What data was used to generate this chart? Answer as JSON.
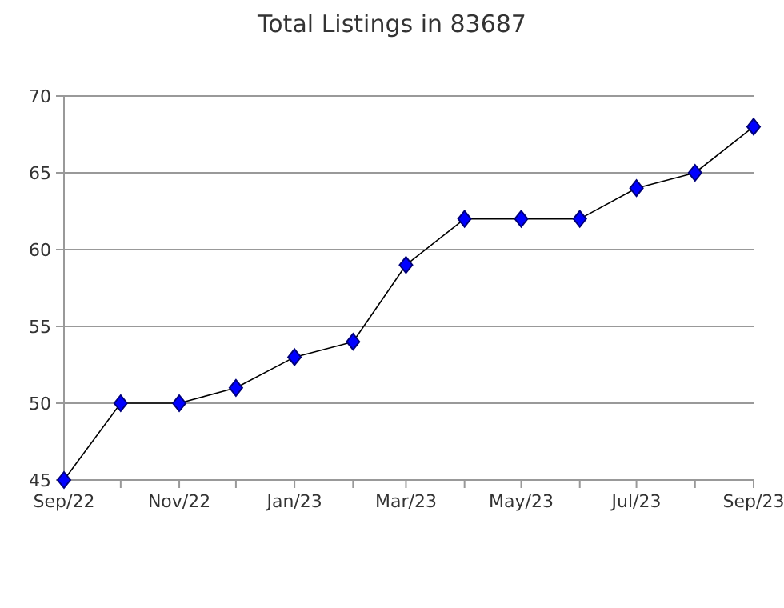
{
  "chart_data": {
    "type": "line",
    "title": "Total Listings in 83687",
    "x": [
      "2022-09",
      "2022-10",
      "2022-11",
      "2022-12",
      "2023-01",
      "2023-02",
      "2023-03",
      "2023-04",
      "2023-05",
      "2023-06",
      "2023-07",
      "2023-08",
      "2023-09"
    ],
    "series": [
      {
        "color": "#0000ff",
        "values": [
          45,
          50,
          50,
          51,
          53,
          54,
          59,
          62,
          62,
          62,
          64,
          65,
          68
        ]
      }
    ],
    "xlim": [
      "2022-09",
      "2023-09"
    ],
    "xticks": [
      {
        "value": "2022-09",
        "label": "Sep/22"
      },
      {
        "value": "2022-10",
        "label": null
      },
      {
        "value": "2022-11",
        "label": "Nov/22"
      },
      {
        "value": "2022-12",
        "label": null
      },
      {
        "value": "2023-01",
        "label": "Jan/23"
      },
      {
        "value": "2023-02",
        "label": null
      },
      {
        "value": "2023-03",
        "label": "Mar/23"
      },
      {
        "value": "2023-04",
        "label": null
      },
      {
        "value": "2023-05",
        "label": "May/23"
      },
      {
        "value": "2023-06",
        "label": null
      },
      {
        "value": "2023-07",
        "label": "Jul/23"
      },
      {
        "value": "2023-08",
        "label": null
      },
      {
        "value": "2023-09",
        "label": "Sep/23"
      }
    ],
    "ylim": [
      45,
      70
    ],
    "yticks": [
      45,
      50,
      55,
      60,
      65,
      70
    ],
    "grid": "y",
    "marker": "diamond",
    "line_style": "solid"
  }
}
